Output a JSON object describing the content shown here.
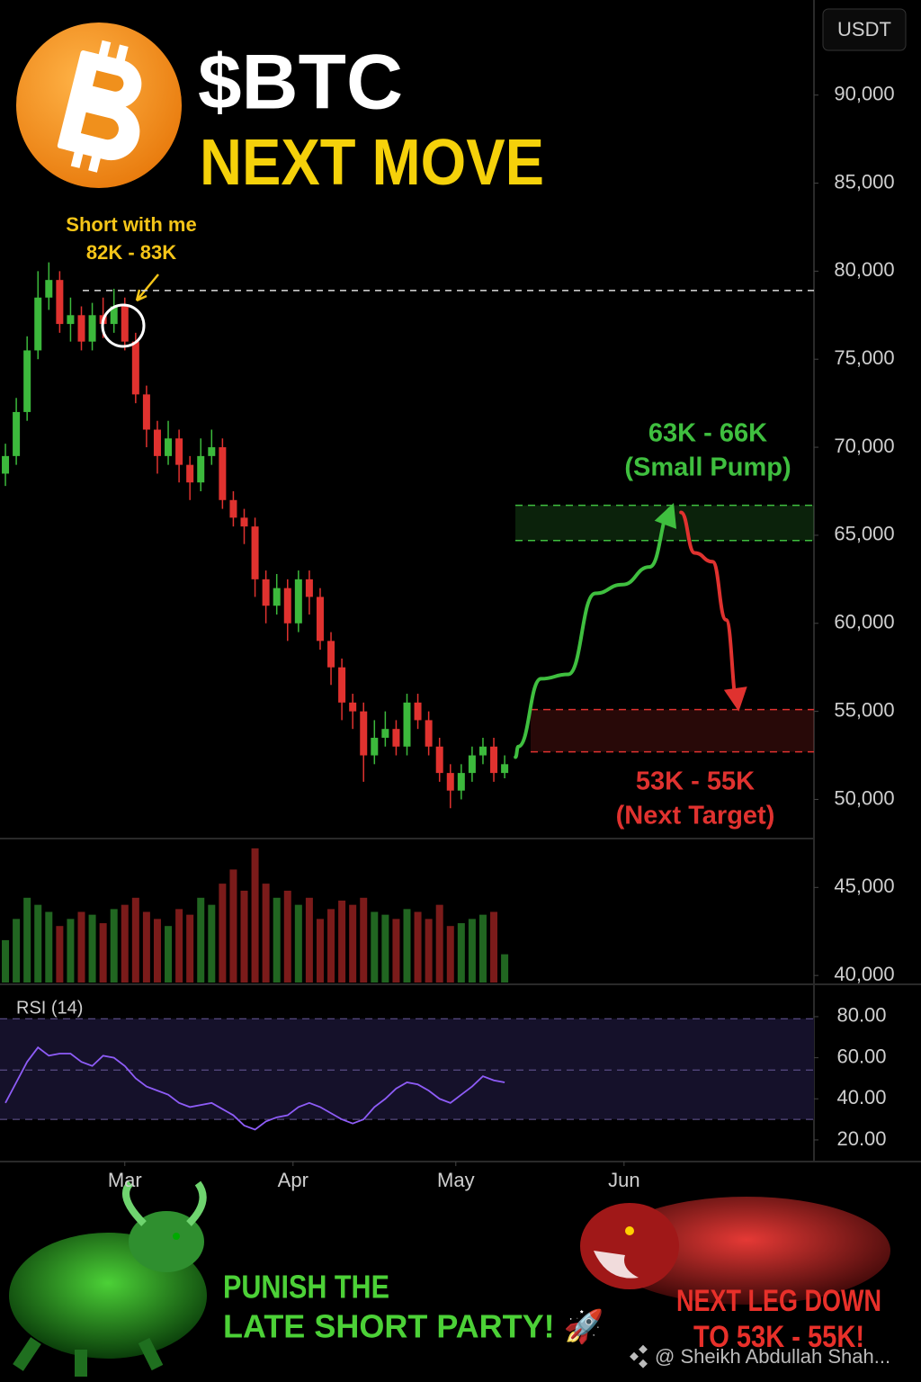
{
  "currency": "USDT",
  "chart_data": [
    {
      "type": "candlestick",
      "title": "$BTC",
      "subtitle": "NEXT MOVE",
      "annotation": [
        "Short with me",
        "82K - 83K"
      ],
      "x": [
        -22,
        -20,
        -18,
        -16,
        -14,
        -12,
        -10,
        -8,
        -6,
        -4,
        -2,
        0,
        2,
        4,
        6,
        8,
        10,
        12,
        14,
        16,
        18,
        20,
        22,
        24,
        26,
        28,
        30,
        32,
        34,
        36,
        38,
        40,
        42,
        44,
        46,
        48,
        50,
        52,
        54,
        56,
        58,
        60,
        62,
        64,
        66,
        68,
        70
      ],
      "open": [
        68500,
        69500,
        72000,
        75500,
        78500,
        79500,
        77000,
        77500,
        76000,
        77500,
        77000,
        78000,
        76000,
        73000,
        71000,
        69500,
        70500,
        69000,
        68000,
        69500,
        70000,
        67000,
        66000,
        65500,
        62500,
        61000,
        62000,
        60000,
        62500,
        61500,
        59000,
        57500,
        55500,
        55000,
        52500,
        53500,
        54000,
        53000,
        55500,
        54500,
        53000,
        51500,
        50500,
        51500,
        52500,
        53000,
        51500
      ],
      "high": [
        70200,
        72800,
        76300,
        80000,
        80500,
        80000,
        78500,
        78000,
        78200,
        78500,
        79000,
        78500,
        76500,
        73500,
        71500,
        71500,
        71000,
        69500,
        70500,
        71000,
        70500,
        67500,
        66500,
        66000,
        63000,
        62800,
        62500,
        63000,
        63000,
        62000,
        59500,
        58000,
        56000,
        55500,
        54500,
        55000,
        54500,
        56000,
        56000,
        55000,
        53500,
        52000,
        52000,
        53000,
        53500,
        53500,
        52500
      ],
      "low": [
        67800,
        69000,
        71500,
        75000,
        77800,
        76500,
        76000,
        75500,
        75500,
        76200,
        76500,
        75500,
        72500,
        70000,
        68500,
        69000,
        68000,
        67000,
        67500,
        69000,
        66500,
        65500,
        64500,
        61500,
        60000,
        60500,
        59000,
        59500,
        60500,
        58500,
        56500,
        54500,
        54000,
        51000,
        52000,
        53000,
        52500,
        52500,
        54000,
        52500,
        51000,
        49500,
        50000,
        51000,
        52000,
        51000,
        51200
      ],
      "close": [
        69500,
        72000,
        75500,
        78500,
        79500,
        77000,
        77500,
        76000,
        77500,
        77000,
        78000,
        76000,
        73000,
        71000,
        69500,
        70500,
        69000,
        68000,
        69500,
        70000,
        67000,
        66000,
        65500,
        62500,
        61000,
        62000,
        60000,
        62500,
        61500,
        59000,
        57500,
        55500,
        55000,
        52500,
        53500,
        54000,
        53000,
        55500,
        54500,
        53000,
        51500,
        50500,
        51500,
        52500,
        53000,
        51500,
        52000
      ],
      "volume": [
        30,
        45,
        60,
        55,
        50,
        40,
        45,
        50,
        48,
        42,
        52,
        55,
        60,
        50,
        45,
        40,
        52,
        48,
        60,
        55,
        70,
        80,
        65,
        95,
        70,
        60,
        65,
        55,
        60,
        45,
        52,
        58,
        55,
        60,
        50,
        48,
        45,
        52,
        50,
        45,
        55,
        40,
        42,
        45,
        48,
        50,
        20
      ],
      "volume_ylim": [
        0,
        100
      ],
      "up_color": "#3cb93c",
      "down_color": "#e0322f",
      "xlim": [
        -23,
        127
      ],
      "ylim": [
        39600,
        95400
      ],
      "yticks": [
        {
          "value": 90000,
          "label": "90,000"
        },
        {
          "value": 85000,
          "label": "85,000"
        },
        {
          "value": 80000,
          "label": "80,000"
        },
        {
          "value": 75000,
          "label": "75,000"
        },
        {
          "value": 70000,
          "label": "70,000"
        },
        {
          "value": 65000,
          "label": "65,000"
        },
        {
          "value": 60000,
          "label": "60,000"
        },
        {
          "value": 55000,
          "label": "55,000"
        },
        {
          "value": 50000,
          "label": "50,000"
        },
        {
          "value": 45000,
          "label": "45,000"
        },
        {
          "value": 40000,
          "label": "40,000"
        }
      ],
      "entry_level": 78900,
      "zones": [
        {
          "label": "63K - 66K",
          "sublabel": "(Small Pump)",
          "range": [
            64700,
            66700
          ],
          "color": "#3fbf3f"
        },
        {
          "label": "53K - 55K",
          "sublabel": "(Next Target)",
          "range": [
            52700,
            55100
          ],
          "color": "#e0322f"
        }
      ],
      "pump_path": {
        "color": "#3fbf3f",
        "x": [
          72,
          72.5,
          76.7,
          81.7,
          86.7,
          91.7,
          96.7,
          100.8
        ],
        "values": [
          52400,
          53000,
          56850,
          57100,
          61700,
          62200,
          63200,
          66550
        ]
      },
      "drop_path": {
        "color": "#e0322f",
        "x": [
          102.5,
          105,
          108.3,
          110.8,
          113
        ],
        "values": [
          66300,
          64000,
          63500,
          60200,
          55300
        ]
      }
    },
    {
      "type": "line",
      "title": "RSI (14)",
      "color": "#8e5cf7",
      "x": [
        -22,
        -20,
        -18,
        -16,
        -14,
        -12,
        -10,
        -8,
        -6,
        -4,
        -2,
        0,
        2,
        4,
        6,
        8,
        10,
        12,
        14,
        16,
        18,
        20,
        22,
        24,
        26,
        28,
        30,
        32,
        34,
        36,
        38,
        40,
        42,
        44,
        46,
        48,
        50,
        52,
        54,
        56,
        58,
        60,
        62,
        64,
        66,
        68,
        70
      ],
      "values": [
        38,
        48,
        58,
        65,
        61,
        62,
        62,
        58,
        56,
        61,
        60,
        56,
        50,
        46,
        44,
        42,
        38,
        36,
        37,
        38,
        35,
        32,
        27,
        25,
        29,
        31,
        32,
        36,
        38,
        36,
        33,
        30,
        28,
        30,
        36,
        40,
        45,
        48,
        47,
        44,
        40,
        38,
        42,
        46,
        51,
        49,
        48
      ],
      "levels": [
        79,
        54,
        30
      ],
      "xlim": [
        -23,
        127
      ],
      "ylim": [
        9.9,
        95.3
      ],
      "yticks": [
        {
          "value": 80,
          "label": "80.00"
        },
        {
          "value": 60,
          "label": "60.00"
        },
        {
          "value": 40,
          "label": "40.00"
        },
        {
          "value": 20,
          "label": "20.00"
        }
      ],
      "xticks": [
        {
          "value": 0,
          "label": "Mar"
        },
        {
          "value": 31,
          "label": "Apr"
        },
        {
          "value": 61,
          "label": "May"
        },
        {
          "value": 92,
          "label": "Jun"
        }
      ]
    }
  ],
  "footer": {
    "left": [
      "PUNISH THE",
      "LATE SHORT PARTY! 🚀"
    ],
    "right": [
      "NEXT LEG DOWN",
      "TO 53K - 55K!"
    ],
    "watermark": "@ Sheikh Abdullah Shah..."
  }
}
